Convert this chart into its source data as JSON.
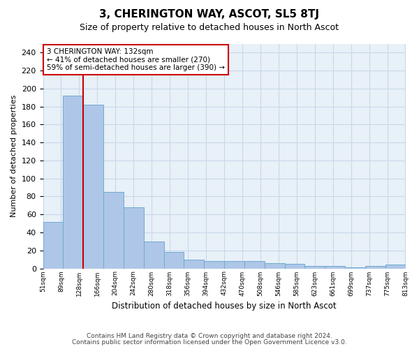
{
  "title": "3, CHERINGTON WAY, ASCOT, SL5 8TJ",
  "subtitle": "Size of property relative to detached houses in North Ascot",
  "xlabel": "Distribution of detached houses by size in North Ascot",
  "ylabel": "Number of detached properties",
  "bar_values": [
    52,
    192,
    182,
    85,
    68,
    30,
    18,
    10,
    8,
    8,
    8,
    6,
    5,
    3,
    3,
    1,
    3,
    4
  ],
  "categories": [
    "51sqm",
    "89sqm",
    "128sqm",
    "166sqm",
    "204sqm",
    "242sqm",
    "280sqm",
    "318sqm",
    "356sqm",
    "394sqm",
    "432sqm",
    "470sqm",
    "508sqm",
    "546sqm",
    "585sqm",
    "623sqm",
    "661sqm",
    "699sqm",
    "737sqm",
    "775sqm",
    "813sqm"
  ],
  "bar_color": "#aec6e8",
  "bar_edge_color": "#6fabd0",
  "vline_color": "#cc0000",
  "annotation_text": "3 CHERINGTON WAY: 132sqm\n← 41% of detached houses are smaller (270)\n59% of semi-detached houses are larger (390) →",
  "annotation_box_color": "#ffffff",
  "annotation_box_edge_color": "#cc0000",
  "ylim": [
    0,
    250
  ],
  "yticks": [
    0,
    20,
    40,
    60,
    80,
    100,
    120,
    140,
    160,
    180,
    200,
    220,
    240
  ],
  "grid_color": "#c8d8e8",
  "bg_color": "#e8f0f8",
  "footer_line1": "Contains HM Land Registry data © Crown copyright and database right 2024.",
  "footer_line2": "Contains public sector information licensed under the Open Government Licence v3.0."
}
